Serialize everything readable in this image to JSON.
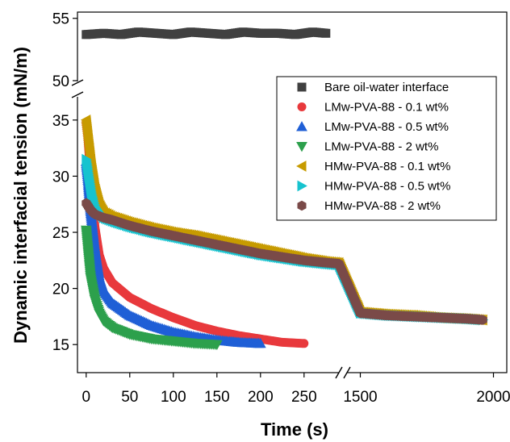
{
  "chart_data": {
    "type": "scatter",
    "xlabel": "Time (s)",
    "ylabel": "Dynamic interfacial tension (mN/m)",
    "x_segments": [
      {
        "range": [
          -10,
          290
        ],
        "ticks": [
          0,
          50,
          100,
          150,
          200,
          250
        ]
      },
      {
        "range": [
          1450,
          2050
        ],
        "ticks": [
          1500,
          2000
        ]
      }
    ],
    "y_segments": [
      {
        "range": [
          12.5,
          37
        ],
        "ticks": [
          15,
          20,
          25,
          30,
          35
        ]
      },
      {
        "range": [
          50,
          55.5
        ],
        "ticks": [
          50,
          55
        ]
      }
    ],
    "x_tick_labels": [
      "0",
      "50",
      "100",
      "150",
      "200",
      "250",
      "1500",
      "2000"
    ],
    "y_tick_labels": [
      "15",
      "20",
      "25",
      "30",
      "35",
      "50",
      "55"
    ],
    "legend_position": "top-right",
    "series": [
      {
        "name": "Bare oil-water interface",
        "marker": "square",
        "color": "#404040",
        "points": [
          [
            0,
            53.7
          ],
          [
            20,
            53.8
          ],
          [
            40,
            53.7
          ],
          [
            60,
            53.9
          ],
          [
            80,
            53.8
          ],
          [
            100,
            53.7
          ],
          [
            120,
            53.9
          ],
          [
            140,
            53.8
          ],
          [
            160,
            53.7
          ],
          [
            180,
            53.9
          ],
          [
            200,
            53.8
          ],
          [
            220,
            53.8
          ],
          [
            240,
            53.7
          ],
          [
            260,
            53.9
          ],
          [
            275,
            53.8
          ]
        ]
      },
      {
        "name": "LMw-PVA-88 - 0.1 wt%",
        "marker": "circle",
        "color": "#e8393c",
        "points": [
          [
            0,
            34.8
          ],
          [
            2,
            33.5
          ],
          [
            5,
            30
          ],
          [
            10,
            25.5
          ],
          [
            15,
            23
          ],
          [
            20,
            21.8
          ],
          [
            30,
            20.5
          ],
          [
            50,
            19.2
          ],
          [
            75,
            18.2
          ],
          [
            100,
            17.4
          ],
          [
            125,
            16.7
          ],
          [
            150,
            16.2
          ],
          [
            175,
            15.8
          ],
          [
            200,
            15.5
          ],
          [
            225,
            15.2
          ],
          [
            250,
            15.1
          ]
        ]
      },
      {
        "name": "LMw-PVA-88 - 0.5 wt%",
        "marker": "triangle-up",
        "color": "#1f5fd6",
        "points": [
          [
            0,
            31.3
          ],
          [
            2,
            29.8
          ],
          [
            5,
            27
          ],
          [
            10,
            23.5
          ],
          [
            15,
            21
          ],
          [
            20,
            19.8
          ],
          [
            30,
            18.7
          ],
          [
            50,
            17.6
          ],
          [
            75,
            16.7
          ],
          [
            100,
            16.1
          ],
          [
            125,
            15.7
          ],
          [
            150,
            15.4
          ],
          [
            175,
            15.2
          ],
          [
            200,
            15.1
          ]
        ]
      },
      {
        "name": "LMw-PVA-88 - 2 wt%",
        "marker": "triangle-down",
        "color": "#2ca04c",
        "points": [
          [
            0,
            25.2
          ],
          [
            2,
            23.5
          ],
          [
            5,
            21
          ],
          [
            10,
            19
          ],
          [
            15,
            17.8
          ],
          [
            20,
            17.1
          ],
          [
            30,
            16.5
          ],
          [
            50,
            15.9
          ],
          [
            75,
            15.5
          ],
          [
            100,
            15.3
          ],
          [
            125,
            15.1
          ],
          [
            150,
            15.0
          ]
        ]
      },
      {
        "name": "HMw-PVA-88 - 0.1 wt%",
        "marker": "triangle-left",
        "color": "#c79b00",
        "points": [
          [
            0,
            35
          ],
          [
            3,
            33
          ],
          [
            6,
            31
          ],
          [
            10,
            29
          ],
          [
            15,
            27.5
          ],
          [
            20,
            26.8
          ],
          [
            30,
            26.4
          ],
          [
            50,
            25.9
          ],
          [
            75,
            25.4
          ],
          [
            100,
            25
          ],
          [
            125,
            24.7
          ],
          [
            150,
            24.3
          ],
          [
            175,
            23.9
          ],
          [
            200,
            23.5
          ],
          [
            225,
            23.1
          ],
          [
            250,
            22.7
          ],
          [
            275,
            22.4
          ],
          [
            290,
            22.3
          ],
          [
            1500,
            17.9
          ],
          [
            1600,
            17.7
          ],
          [
            1700,
            17.6
          ],
          [
            1800,
            17.4
          ],
          [
            1900,
            17.3
          ],
          [
            1960,
            17.2
          ]
        ]
      },
      {
        "name": "HMw-PVA-88 - 0.5 wt%",
        "marker": "triangle-right",
        "color": "#17c3cf",
        "points": [
          [
            0,
            31.5
          ],
          [
            3,
            30
          ],
          [
            6,
            28.5
          ],
          [
            10,
            27.3
          ],
          [
            15,
            26.7
          ],
          [
            20,
            26.3
          ],
          [
            30,
            26
          ],
          [
            50,
            25.5
          ],
          [
            75,
            25
          ],
          [
            100,
            24.6
          ],
          [
            125,
            24.2
          ],
          [
            150,
            23.8
          ],
          [
            175,
            23.4
          ],
          [
            200,
            23
          ],
          [
            225,
            22.7
          ],
          [
            250,
            22.4
          ],
          [
            275,
            22.2
          ],
          [
            290,
            22.1
          ],
          [
            1500,
            17.8
          ],
          [
            1600,
            17.6
          ],
          [
            1700,
            17.5
          ],
          [
            1800,
            17.4
          ],
          [
            1900,
            17.3
          ],
          [
            1960,
            17.2
          ]
        ]
      },
      {
        "name": "HMw-PVA-88 - 2 wt%",
        "marker": "hexagon",
        "color": "#7a4a48",
        "points": [
          [
            0,
            27.6
          ],
          [
            5,
            27
          ],
          [
            10,
            26.6
          ],
          [
            20,
            26.3
          ],
          [
            30,
            26.1
          ],
          [
            50,
            25.6
          ],
          [
            75,
            25.1
          ],
          [
            100,
            24.7
          ],
          [
            125,
            24.3
          ],
          [
            150,
            23.9
          ],
          [
            175,
            23.5
          ],
          [
            200,
            23.1
          ],
          [
            225,
            22.8
          ],
          [
            250,
            22.5
          ],
          [
            275,
            22.3
          ],
          [
            290,
            22.2
          ],
          [
            1500,
            17.8
          ],
          [
            1600,
            17.6
          ],
          [
            1700,
            17.5
          ],
          [
            1800,
            17.4
          ],
          [
            1900,
            17.3
          ],
          [
            1960,
            17.2
          ]
        ]
      }
    ]
  }
}
